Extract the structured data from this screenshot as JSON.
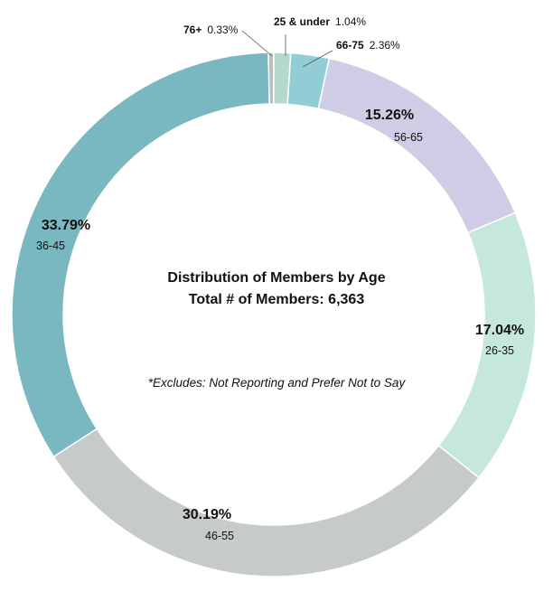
{
  "chart_data": {
    "type": "pie",
    "variant": "donut",
    "title": "Distribution of Members by Age",
    "subtitle": "Total # of Members: 6,363",
    "note": "*Excludes: Not Reporting and Prefer Not to Say",
    "slices": [
      {
        "label": "76+",
        "pct_label": "0.33%",
        "value": 0.33,
        "color": "#bdbdbd"
      },
      {
        "label": "25 & under",
        "pct_label": "1.04%",
        "value": 1.04,
        "color": "#b4dad0"
      },
      {
        "label": "66-75",
        "pct_label": "2.36%",
        "value": 2.36,
        "color": "#92cdd6"
      },
      {
        "label": "56-65",
        "pct_label": "15.26%",
        "value": 15.26,
        "color": "#cfcde6"
      },
      {
        "label": "26-35",
        "pct_label": "17.04%",
        "value": 17.04,
        "color": "#c6e7dd"
      },
      {
        "label": "46-55",
        "pct_label": "30.19%",
        "value": 30.19,
        "color": "#c6cacb"
      },
      {
        "label": "36-45",
        "pct_label": "33.79%",
        "value": 33.79,
        "color": "#7ab8c1"
      }
    ]
  }
}
